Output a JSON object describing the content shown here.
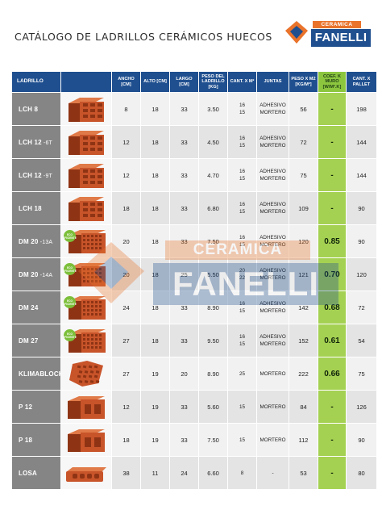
{
  "title": "CATÁLOGO DE LADRILLOS CERÁMICOS HUECOS",
  "brand": {
    "top": "CERAMICA",
    "main": "FANELLI",
    "accent": "#e9732b",
    "primary": "#1f4f8f"
  },
  "headers": {
    "ladrillo": "LADRILLO",
    "ancho": "ANCHO [CM]",
    "alto": "ALTO [CM]",
    "largo": "LARGO [CM]",
    "peso": "PESO DEL LADRILLO [KG]",
    "cant_m2": "CANT. X M²",
    "juntas": "JUNTAS",
    "peso_m2": "PESO X M2 [KG/M²]",
    "coef": "COEF. K MURO [W/M².K]",
    "pallet": "CANT. X PALLET"
  },
  "eco_badge": "ECO EFICIENTE",
  "rows": [
    {
      "name": "LCH 8",
      "suffix": "",
      "ancho": "8",
      "alto": "18",
      "largo": "33",
      "peso": "3.50",
      "cant1": "16",
      "cant2": "15",
      "juntas1": "ADHESIVO",
      "juntas2": "MORTERO",
      "peso_m2": "56",
      "coef": "-",
      "pallet": "198",
      "icon": "hollow-brick-icon",
      "eco": false
    },
    {
      "name": "LCH 12",
      "suffix": " -6T",
      "ancho": "12",
      "alto": "18",
      "largo": "33",
      "peso": "4.50",
      "cant1": "16",
      "cant2": "15",
      "juntas1": "ADHESIVO",
      "juntas2": "MORTERO",
      "peso_m2": "72",
      "coef": "-",
      "pallet": "144",
      "icon": "hollow-brick-icon",
      "eco": false
    },
    {
      "name": "LCH 12",
      "suffix": " -9T",
      "ancho": "12",
      "alto": "18",
      "largo": "33",
      "peso": "4.70",
      "cant1": "16",
      "cant2": "15",
      "juntas1": "ADHESIVO",
      "juntas2": "MORTERO",
      "peso_m2": "75",
      "coef": "-",
      "pallet": "144",
      "icon": "hollow-brick-icon",
      "eco": false
    },
    {
      "name": "LCH 18",
      "suffix": "",
      "ancho": "18",
      "alto": "18",
      "largo": "33",
      "peso": "6.80",
      "cant1": "16",
      "cant2": "15",
      "juntas1": "ADHESIVO",
      "juntas2": "MORTERO",
      "peso_m2": "109",
      "coef": "-",
      "pallet": "90",
      "icon": "hollow-brick-icon",
      "eco": false
    },
    {
      "name": "DM 20",
      "suffix": " -13A",
      "ancho": "20",
      "alto": "18",
      "largo": "33",
      "peso": "7.50",
      "cant1": "16",
      "cant2": "15",
      "juntas1": "ADHESIVO",
      "juntas2": "MORTERO",
      "peso_m2": "120",
      "coef": "0.85",
      "pallet": "90",
      "icon": "thermal-brick-icon",
      "eco": true
    },
    {
      "name": "DM 20",
      "suffix": " -14A",
      "ancho": "20",
      "alto": "18",
      "largo": "25",
      "peso": "5.50",
      "cant1": "20",
      "cant2": "22",
      "juntas1": "ADHESIVO",
      "juntas2": "MORTERO",
      "peso_m2": "121",
      "coef": "0.70",
      "pallet": "120",
      "icon": "thermal-brick-icon",
      "eco": true
    },
    {
      "name": "DM 24",
      "suffix": "",
      "ancho": "24",
      "alto": "18",
      "largo": "33",
      "peso": "8.90",
      "cant1": "16",
      "cant2": "15",
      "juntas1": "ADHESIVO",
      "juntas2": "MORTERO",
      "peso_m2": "142",
      "coef": "0.68",
      "pallet": "72",
      "icon": "thermal-brick-icon",
      "eco": true
    },
    {
      "name": "DM 27",
      "suffix": "",
      "ancho": "27",
      "alto": "18",
      "largo": "33",
      "peso": "9.50",
      "cant1": "16",
      "cant2": "15",
      "juntas1": "ADHESIVO",
      "juntas2": "MORTERO",
      "peso_m2": "152",
      "coef": "0.61",
      "pallet": "54",
      "icon": "thermal-brick-icon",
      "eco": true
    },
    {
      "name": "KLIMABLOCK",
      "suffix": "",
      "ancho": "27",
      "alto": "19",
      "largo": "20",
      "peso": "8.90",
      "cant1": "25",
      "cant2": "",
      "juntas1": "MORTERO",
      "juntas2": "",
      "peso_m2": "222",
      "coef": "0.66",
      "pallet": "75",
      "icon": "klimablock-brick-icon",
      "eco": false
    },
    {
      "name": "P 12",
      "suffix": "",
      "ancho": "12",
      "alto": "19",
      "largo": "33",
      "peso": "5.60",
      "cant1": "15",
      "cant2": "",
      "juntas1": "MORTERO",
      "juntas2": "",
      "peso_m2": "84",
      "coef": "-",
      "pallet": "126",
      "icon": "bearing-brick-icon",
      "eco": false
    },
    {
      "name": "P 18",
      "suffix": "",
      "ancho": "18",
      "alto": "19",
      "largo": "33",
      "peso": "7.50",
      "cant1": "15",
      "cant2": "",
      "juntas1": "MORTERO",
      "juntas2": "",
      "peso_m2": "112",
      "coef": "-",
      "pallet": "90",
      "icon": "bearing-brick-icon",
      "eco": false
    },
    {
      "name": "LOSA",
      "suffix": "",
      "ancho": "38",
      "alto": "11",
      "largo": "24",
      "peso": "6.60",
      "cant1": "8",
      "cant2": "",
      "juntas1": "-",
      "juntas2": "",
      "peso_m2": "53",
      "coef": "-",
      "pallet": "80",
      "icon": "slab-block-icon",
      "eco": false
    }
  ]
}
